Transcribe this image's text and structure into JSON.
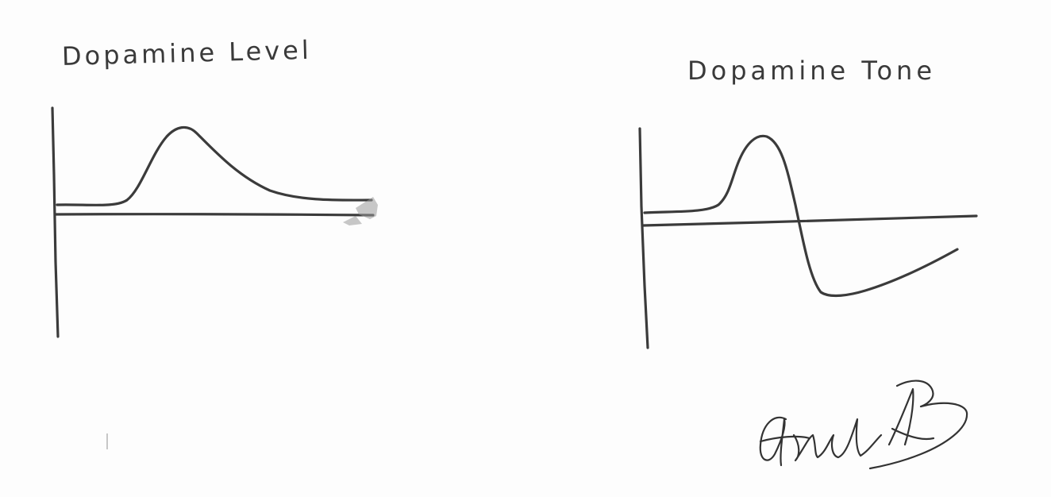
{
  "panels": [
    {
      "title": "Dopamine Level"
    },
    {
      "title": "Dopamine Tone"
    }
  ],
  "ink_color": "#3b3b3b",
  "signature": {
    "style": "handwritten-initials"
  }
}
